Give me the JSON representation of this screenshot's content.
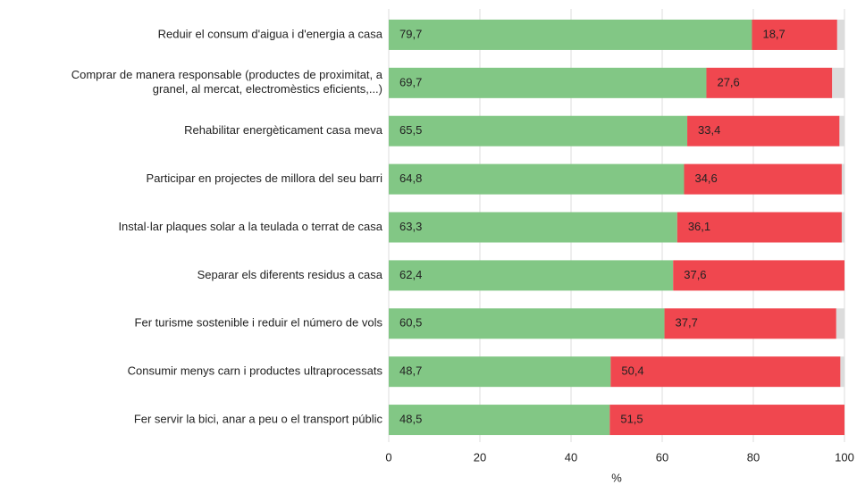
{
  "chart_data": {
    "type": "stacked-bar-horizontal",
    "categories": [
      "Reduir el consum d'aigua i d'energia a casa",
      "Comprar de manera responsable (productes de proximitat, a\ngranel, al mercat, electromèstics eficients,...)",
      "Rehabilitar energèticament casa meva",
      "Participar en projectes de millora del seu barri",
      "Instal·lar plaques solar a la teulada o terrat de casa",
      "Separar els diferents residus a casa",
      "Fer turisme sostenible i reduir el número de vols",
      "Consumir menys carn i productes ultraprocessats",
      "Fer servir la bici, anar a peu o el transport públic"
    ],
    "series": [
      {
        "color": "#82c785",
        "values": [
          79.7,
          69.7,
          65.5,
          64.8,
          63.3,
          62.4,
          60.5,
          48.7,
          48.5
        ],
        "value_labels": [
          "79,7",
          "69,7",
          "65,5",
          "64,8",
          "63,3",
          "62,4",
          "60,5",
          "48,7",
          "48,5"
        ]
      },
      {
        "color": "#f0474f",
        "values": [
          18.7,
          27.6,
          33.4,
          34.6,
          36.1,
          37.6,
          37.7,
          50.4,
          51.5
        ],
        "value_labels": [
          "18,7",
          "27,6",
          "33,4",
          "34,6",
          "36,1",
          "37,6",
          "37,7",
          "50,4",
          "51,5"
        ]
      },
      {
        "color": "#dcdcdc",
        "values": [
          1.6,
          2.7,
          1.1,
          0.6,
          0.6,
          0,
          1.8,
          0.9,
          0
        ]
      }
    ],
    "xlim": [
      0,
      100
    ],
    "xticks": [
      0,
      20,
      40,
      60,
      80,
      100
    ],
    "xlabel": "%",
    "grid": true
  }
}
